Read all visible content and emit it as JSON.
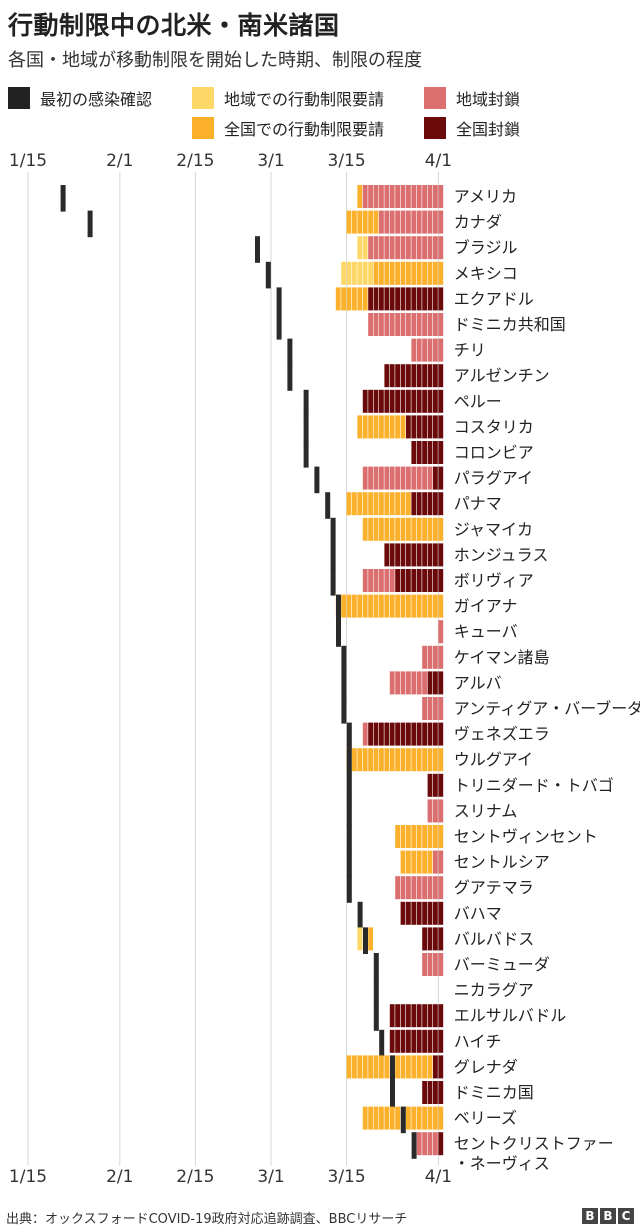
{
  "header": {
    "title": "行動制限中の北米・南米諸国",
    "subtitle": "各国・地域が移動制限を開始した時期、制限の程度"
  },
  "legend": [
    {
      "key": "first_case",
      "label": "最初の感染確認",
      "color": "#222222"
    },
    {
      "key": "regional_request",
      "label": "地域での行動制限要請",
      "color": "#fdd868"
    },
    {
      "key": "national_request",
      "label": "全国での行動制限要請",
      "color": "#fbb12c"
    },
    {
      "key": "regional_lockdown",
      "label": "地域封鎖",
      "color": "#db6e6e"
    },
    {
      "key": "national_lockdown",
      "label": "全国封鎖",
      "color": "#6b0a0a"
    }
  ],
  "chart_data": {
    "type": "timeline",
    "x_ticks": [
      "1/15",
      "2/1",
      "2/15",
      "3/1",
      "3/15",
      "4/1"
    ],
    "x_tick_days": [
      15,
      32,
      46,
      60,
      74,
      91
    ],
    "x_range_days": [
      15,
      92
    ],
    "countries": [
      {
        "name": "アメリカ",
        "first_case": 21,
        "segments": [
          {
            "start": 76,
            "end": 77,
            "level": "national_request"
          },
          {
            "start": 77,
            "end": 92,
            "level": "regional_lockdown"
          }
        ]
      },
      {
        "name": "カナダ",
        "first_case": 26,
        "segments": [
          {
            "start": 74,
            "end": 80,
            "level": "national_request"
          },
          {
            "start": 80,
            "end": 92,
            "level": "regional_lockdown"
          }
        ]
      },
      {
        "name": "ブラジル",
        "first_case": 57,
        "segments": [
          {
            "start": 76,
            "end": 78,
            "level": "regional_request"
          },
          {
            "start": 78,
            "end": 92,
            "level": "regional_lockdown"
          }
        ]
      },
      {
        "name": "メキシコ",
        "first_case": 59,
        "segments": [
          {
            "start": 73,
            "end": 79,
            "level": "regional_request"
          },
          {
            "start": 79,
            "end": 92,
            "level": "national_request"
          }
        ]
      },
      {
        "name": "エクアドル",
        "first_case": 61,
        "segments": [
          {
            "start": 72,
            "end": 78,
            "level": "national_request"
          },
          {
            "start": 78,
            "end": 92,
            "level": "national_lockdown"
          }
        ]
      },
      {
        "name": "ドミニカ共和国",
        "first_case": 61,
        "segments": [
          {
            "start": 78,
            "end": 92,
            "level": "regional_lockdown"
          }
        ]
      },
      {
        "name": "チリ",
        "first_case": 63,
        "segments": [
          {
            "start": 86,
            "end": 92,
            "level": "regional_lockdown"
          }
        ]
      },
      {
        "name": "アルゼンチン",
        "first_case": 63,
        "segments": [
          {
            "start": 81,
            "end": 92,
            "level": "national_lockdown"
          }
        ]
      },
      {
        "name": "ペルー",
        "first_case": 66,
        "segments": [
          {
            "start": 77,
            "end": 92,
            "level": "national_lockdown"
          }
        ]
      },
      {
        "name": "コスタリカ",
        "first_case": 66,
        "segments": [
          {
            "start": 76,
            "end": 85,
            "level": "national_request"
          },
          {
            "start": 85,
            "end": 92,
            "level": "national_lockdown"
          }
        ]
      },
      {
        "name": "コロンビア",
        "first_case": 66,
        "segments": [
          {
            "start": 86,
            "end": 92,
            "level": "national_lockdown"
          }
        ]
      },
      {
        "name": "パラグアイ",
        "first_case": 68,
        "segments": [
          {
            "start": 77,
            "end": 90,
            "level": "regional_lockdown"
          },
          {
            "start": 90,
            "end": 92,
            "level": "national_lockdown"
          }
        ]
      },
      {
        "name": "パナマ",
        "first_case": 70,
        "segments": [
          {
            "start": 74,
            "end": 86,
            "level": "national_request"
          },
          {
            "start": 86,
            "end": 92,
            "level": "national_lockdown"
          }
        ]
      },
      {
        "name": "ジャマイカ",
        "first_case": 71,
        "segments": [
          {
            "start": 77,
            "end": 92,
            "level": "national_request"
          }
        ]
      },
      {
        "name": "ホンジュラス",
        "first_case": 71,
        "segments": [
          {
            "start": 81,
            "end": 92,
            "level": "national_lockdown"
          }
        ]
      },
      {
        "name": "ボリヴィア",
        "first_case": 71,
        "segments": [
          {
            "start": 77,
            "end": 83,
            "level": "regional_lockdown"
          },
          {
            "start": 83,
            "end": 92,
            "level": "national_lockdown"
          }
        ]
      },
      {
        "name": "ガイアナ",
        "first_case": 72,
        "segments": [
          {
            "start": 72,
            "end": 92,
            "level": "national_request"
          }
        ]
      },
      {
        "name": "キューバ",
        "first_case": 72,
        "segments": [
          {
            "start": 91,
            "end": 92,
            "level": "regional_lockdown"
          }
        ]
      },
      {
        "name": "ケイマン諸島",
        "first_case": 73,
        "segments": [
          {
            "start": 88,
            "end": 92,
            "level": "regional_lockdown"
          }
        ]
      },
      {
        "name": "アルバ",
        "first_case": 73,
        "segments": [
          {
            "start": 82,
            "end": 89,
            "level": "regional_lockdown"
          },
          {
            "start": 89,
            "end": 92,
            "level": "national_lockdown"
          }
        ]
      },
      {
        "name": "アンティグア・バーブーダ",
        "first_case": 73,
        "segments": [
          {
            "start": 88,
            "end": 92,
            "level": "regional_lockdown"
          }
        ]
      },
      {
        "name": "ヴェネズエラ",
        "first_case": 74,
        "segments": [
          {
            "start": 77,
            "end": 78,
            "level": "regional_lockdown"
          },
          {
            "start": 78,
            "end": 92,
            "level": "national_lockdown"
          }
        ]
      },
      {
        "name": "ウルグアイ",
        "first_case": 74,
        "segments": [
          {
            "start": 74,
            "end": 92,
            "level": "national_request"
          }
        ]
      },
      {
        "name": "トリニダード・トバゴ",
        "first_case": 74,
        "segments": [
          {
            "start": 89,
            "end": 92,
            "level": "national_lockdown"
          }
        ]
      },
      {
        "name": "スリナム",
        "first_case": 74,
        "segments": [
          {
            "start": 89,
            "end": 92,
            "level": "regional_lockdown"
          }
        ]
      },
      {
        "name": "セントヴィンセント",
        "first_case": 74,
        "segments": [
          {
            "start": 83,
            "end": 92,
            "level": "national_request"
          }
        ]
      },
      {
        "name": "セントルシア",
        "first_case": 74,
        "segments": [
          {
            "start": 84,
            "end": 90,
            "level": "national_request"
          },
          {
            "start": 90,
            "end": 92,
            "level": "regional_lockdown"
          }
        ]
      },
      {
        "name": "グアテマラ",
        "first_case": 74,
        "segments": [
          {
            "start": 83,
            "end": 92,
            "level": "regional_lockdown"
          }
        ]
      },
      {
        "name": "バハマ",
        "first_case": 76,
        "segments": [
          {
            "start": 84,
            "end": 92,
            "level": "national_lockdown"
          }
        ]
      },
      {
        "name": "バルバドス",
        "first_case": 77,
        "segments": [
          {
            "start": 76,
            "end": 78,
            "level": "regional_request"
          },
          {
            "start": 78,
            "end": 79,
            "level": "national_request"
          },
          {
            "start": 88,
            "end": 92,
            "level": "national_lockdown"
          }
        ]
      },
      {
        "name": "バーミューダ",
        "first_case": 79,
        "segments": [
          {
            "start": 88,
            "end": 92,
            "level": "regional_lockdown"
          }
        ]
      },
      {
        "name": "ニカラグア",
        "first_case": 79,
        "segments": []
      },
      {
        "name": "エルサルバドル",
        "first_case": 79,
        "segments": [
          {
            "start": 82,
            "end": 92,
            "level": "national_lockdown"
          }
        ]
      },
      {
        "name": "ハイチ",
        "first_case": 80,
        "segments": [
          {
            "start": 82,
            "end": 92,
            "level": "national_lockdown"
          }
        ]
      },
      {
        "name": "グレナダ",
        "first_case": 82,
        "segments": [
          {
            "start": 74,
            "end": 90,
            "level": "national_request"
          },
          {
            "start": 90,
            "end": 92,
            "level": "national_lockdown"
          }
        ]
      },
      {
        "name": "ドミニカ国",
        "first_case": 82,
        "segments": [
          {
            "start": 88,
            "end": 92,
            "level": "national_lockdown"
          }
        ]
      },
      {
        "name": "ベリーズ",
        "first_case": 84,
        "segments": [
          {
            "start": 77,
            "end": 92,
            "level": "national_request"
          }
        ]
      },
      {
        "name": "セントクリストファー\n・ネーヴィス",
        "first_case": 86,
        "segments": [
          {
            "start": 87,
            "end": 91,
            "level": "regional_lockdown"
          },
          {
            "start": 91,
            "end": 92,
            "level": "national_lockdown"
          }
        ]
      }
    ]
  },
  "footer": {
    "source": "出典：オックスフォードCOVID-19政府対応追跡調査、BBCリサーチ",
    "logo_letters": [
      "B",
      "B",
      "C"
    ]
  }
}
